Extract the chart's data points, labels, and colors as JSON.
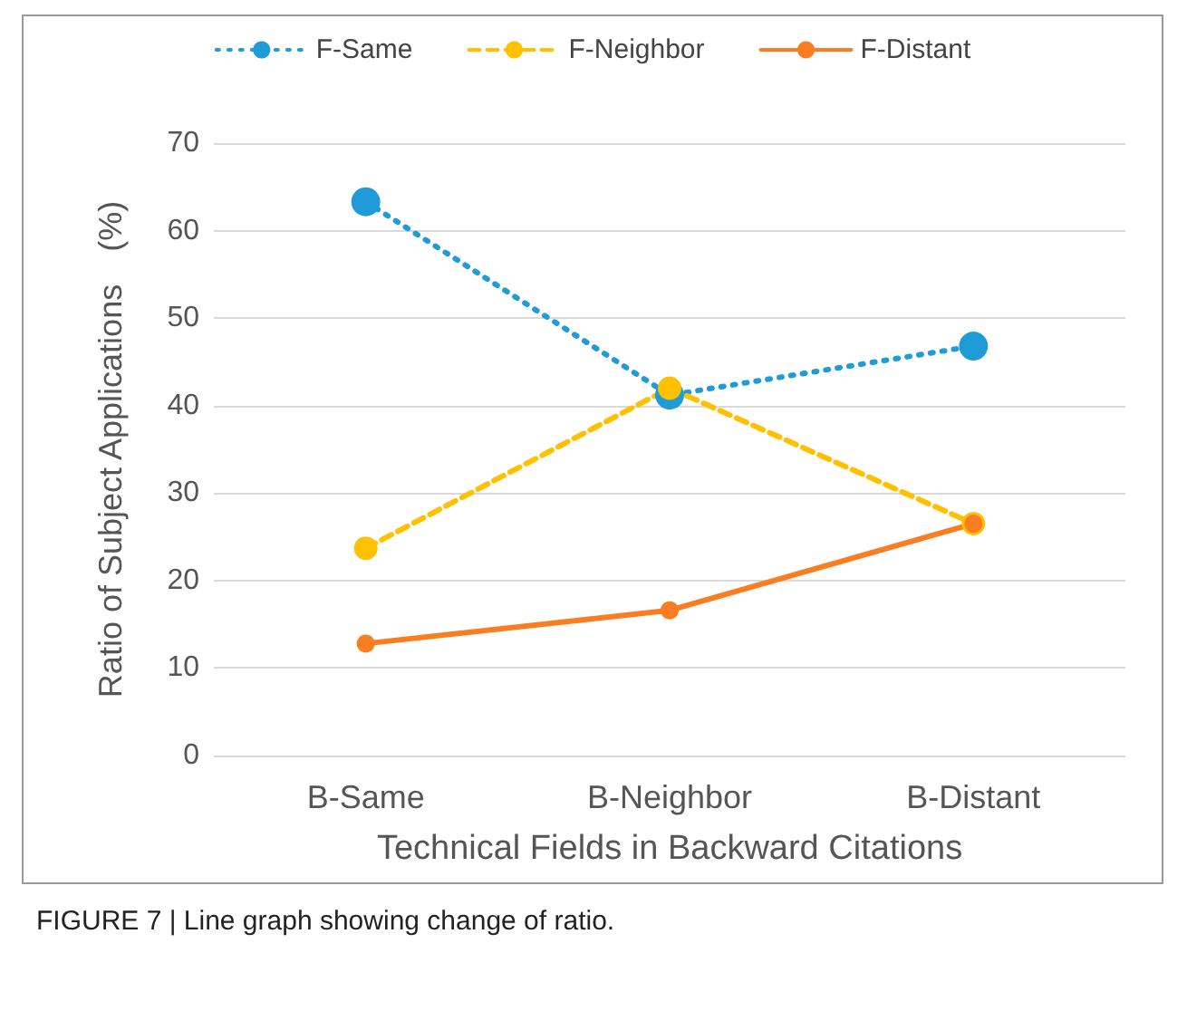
{
  "chart_data": {
    "type": "line",
    "xlabel": "Technical Fields in Backward Citations",
    "ylabel": "Ratio of Subject Applications　(%)",
    "categories": [
      "B-Same",
      "B-Neighbor",
      "B-Distant"
    ],
    "series": [
      {
        "name": "F-Same",
        "color": "#1f9bd7",
        "values": [
          63.3,
          41.2,
          46.8
        ],
        "line_style": "dotted"
      },
      {
        "name": "F-Neighbor",
        "color": "#ffc000",
        "values": [
          23.7,
          42.0,
          26.5
        ],
        "line_style": "dashed"
      },
      {
        "name": "F-Distant",
        "color": "#fb7d22",
        "values": [
          12.8,
          16.6,
          26.5
        ],
        "line_style": "solid"
      }
    ],
    "ylim": [
      0,
      70
    ],
    "yticks": [
      0,
      10,
      20,
      30,
      40,
      50,
      60,
      70
    ],
    "grid": "y",
    "legend": "top",
    "marker": "circle",
    "annotations": [
      "FIGURE 7 | Line graph showing change of ratio."
    ]
  }
}
